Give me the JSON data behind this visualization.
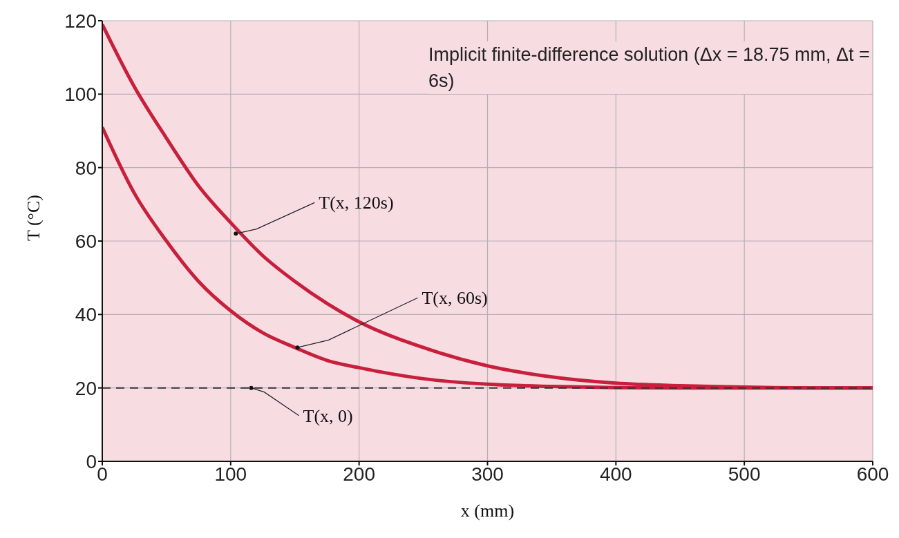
{
  "chart_data": {
    "type": "line",
    "xlabel": "x (mm)",
    "ylabel": "T (°C)",
    "xlim": [
      0,
      600
    ],
    "xticks": [
      0,
      100,
      200,
      300,
      400,
      500,
      600
    ],
    "ylim": [
      0,
      120
    ],
    "yticks": [
      0,
      20,
      40,
      60,
      80,
      100,
      120
    ],
    "grid": true,
    "legend": false,
    "marker": "none",
    "series": [
      {
        "color": "#c8203c",
        "line_style": "solid",
        "x": [
          0,
          25,
          50,
          75,
          100,
          125,
          150,
          175,
          200,
          250,
          300,
          350,
          400,
          450,
          500,
          550,
          600
        ],
        "values": [
          119,
          102,
          88,
          75,
          65,
          56,
          49,
          43,
          38,
          31,
          26,
          23,
          21.3,
          20.6,
          20.2,
          20,
          20
        ]
      },
      {
        "color": "#c8203c",
        "line_style": "solid",
        "x": [
          0,
          25,
          50,
          75,
          100,
          125,
          150,
          175,
          200,
          250,
          300,
          350,
          400,
          450,
          500,
          550,
          600
        ],
        "values": [
          91,
          73,
          60,
          49,
          41,
          35,
          31,
          27.5,
          25.5,
          22.5,
          21,
          20.4,
          20.1,
          20,
          20,
          20,
          20
        ]
      },
      {
        "color": "#333333",
        "line_style": "dashed",
        "x": [
          0,
          600
        ],
        "values": [
          20,
          20
        ]
      }
    ],
    "annotations": [
      "Implicit finite-difference solution (Δx = 18.75 mm, Δt = 6s)",
      {
        "text": "T(x, 120s)",
        "x": 104,
        "y": 62
      },
      {
        "text": "T(x, 60s)",
        "x": 152,
        "y": 31
      },
      {
        "text": "T(x, 0)",
        "x": 116,
        "y": 20
      }
    ]
  }
}
